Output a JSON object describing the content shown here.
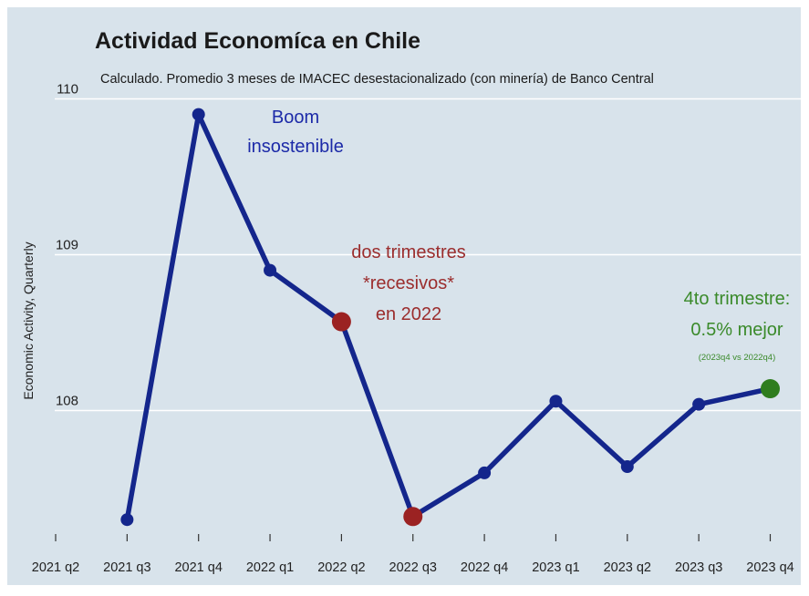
{
  "chart_data": {
    "type": "line",
    "title": "Actividad Economíca en Chile",
    "subtitle": "Calculado.  Promedio 3 meses de IMACEC desestacionalizado (con minería) de Banco Central",
    "ylabel": "Economic Activity, Quarterly",
    "xlabel": "",
    "categories": [
      "2021 q2",
      "2021 q3",
      "2021 q4",
      "2022 q1",
      "2022 q2",
      "2022 q3",
      "2022 q4",
      "2023 q1",
      "2023 q2",
      "2023 q3",
      "2023 q4"
    ],
    "y_ticks": [
      108,
      109,
      110
    ],
    "ylim": [
      107.1,
      110.2
    ],
    "grid": true,
    "series": [
      {
        "color": "#14268c",
        "points": [
          {
            "x": "2021 q3",
            "y": 107.3
          },
          {
            "x": "2021 q4",
            "y": 109.9
          },
          {
            "x": "2022 q1",
            "y": 108.9
          },
          {
            "x": "2022 q2",
            "y": 108.57
          },
          {
            "x": "2022 q3",
            "y": 107.32
          },
          {
            "x": "2022 q4",
            "y": 107.6
          },
          {
            "x": "2023 q1",
            "y": 108.06
          },
          {
            "x": "2023 q2",
            "y": 107.64
          },
          {
            "x": "2023 q3",
            "y": 108.04
          },
          {
            "x": "2023 q4",
            "y": 108.14
          }
        ]
      }
    ],
    "highlights": [
      {
        "x": "2022 q2",
        "color": "#9b2222"
      },
      {
        "x": "2022 q3",
        "color": "#9b2222"
      },
      {
        "x": "2023 q4",
        "color": "#2e7d1e"
      }
    ],
    "annotations": [
      {
        "lines": [
          "Boom",
          "insostenible"
        ],
        "color": "#1c2aa8"
      },
      {
        "lines": [
          "dos trimestres",
          "*recesivos*",
          "en 2022"
        ],
        "color": "#9b2d2d"
      },
      {
        "lines": [
          "4to trimestre:",
          "0.5% mejor"
        ],
        "note": "(2023q4 vs 2022q4)",
        "color": "#3a8a2a"
      }
    ],
    "colors": {
      "background": "#d8e3eb",
      "grid": "#ffffff",
      "line": "#14268c",
      "title": "#1a1a1a"
    }
  }
}
